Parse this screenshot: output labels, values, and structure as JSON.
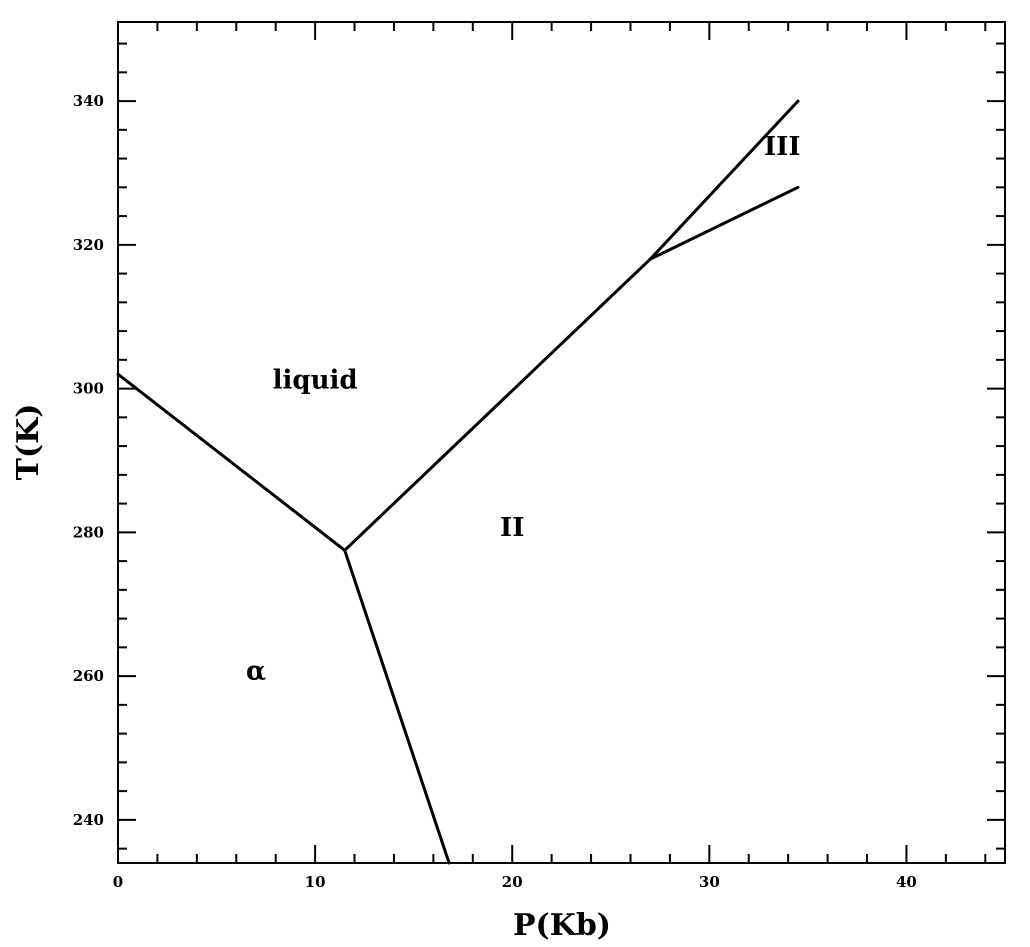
{
  "chart_data": {
    "type": "line",
    "xlabel": "P(Kb)",
    "ylabel": "T(K)",
    "xlim": [
      0,
      45
    ],
    "ylim": [
      234,
      351
    ],
    "x_ticks": [
      0,
      10,
      20,
      30,
      40
    ],
    "x_tick_labels": [
      "0",
      "10",
      "20",
      "30",
      "40"
    ],
    "y_ticks": [
      240,
      260,
      280,
      300,
      320,
      340
    ],
    "y_tick_labels": [
      "240",
      "260",
      "280",
      "300",
      "320",
      "340"
    ],
    "x_minor_step": 2,
    "y_minor_step": 4,
    "grid": false,
    "series": [
      {
        "points": [
          [
            0,
            302
          ],
          [
            11.5,
            277.5
          ]
        ]
      },
      {
        "points": [
          [
            11.5,
            277.5
          ],
          [
            16.8,
            234
          ]
        ]
      },
      {
        "points": [
          [
            11.5,
            277.5
          ],
          [
            27,
            318
          ],
          [
            34.5,
            340
          ]
        ]
      },
      {
        "points": [
          [
            27,
            318
          ],
          [
            34.5,
            328
          ]
        ]
      }
    ],
    "annotations": [
      {
        "text": "liquid",
        "x": 10,
        "y": 300
      },
      {
        "text": "II",
        "x": 20,
        "y": 279.5
      },
      {
        "text": "III",
        "x": 33.7,
        "y": 332.5
      },
      {
        "text": "α",
        "x": 7,
        "y": 259.5
      }
    ]
  }
}
